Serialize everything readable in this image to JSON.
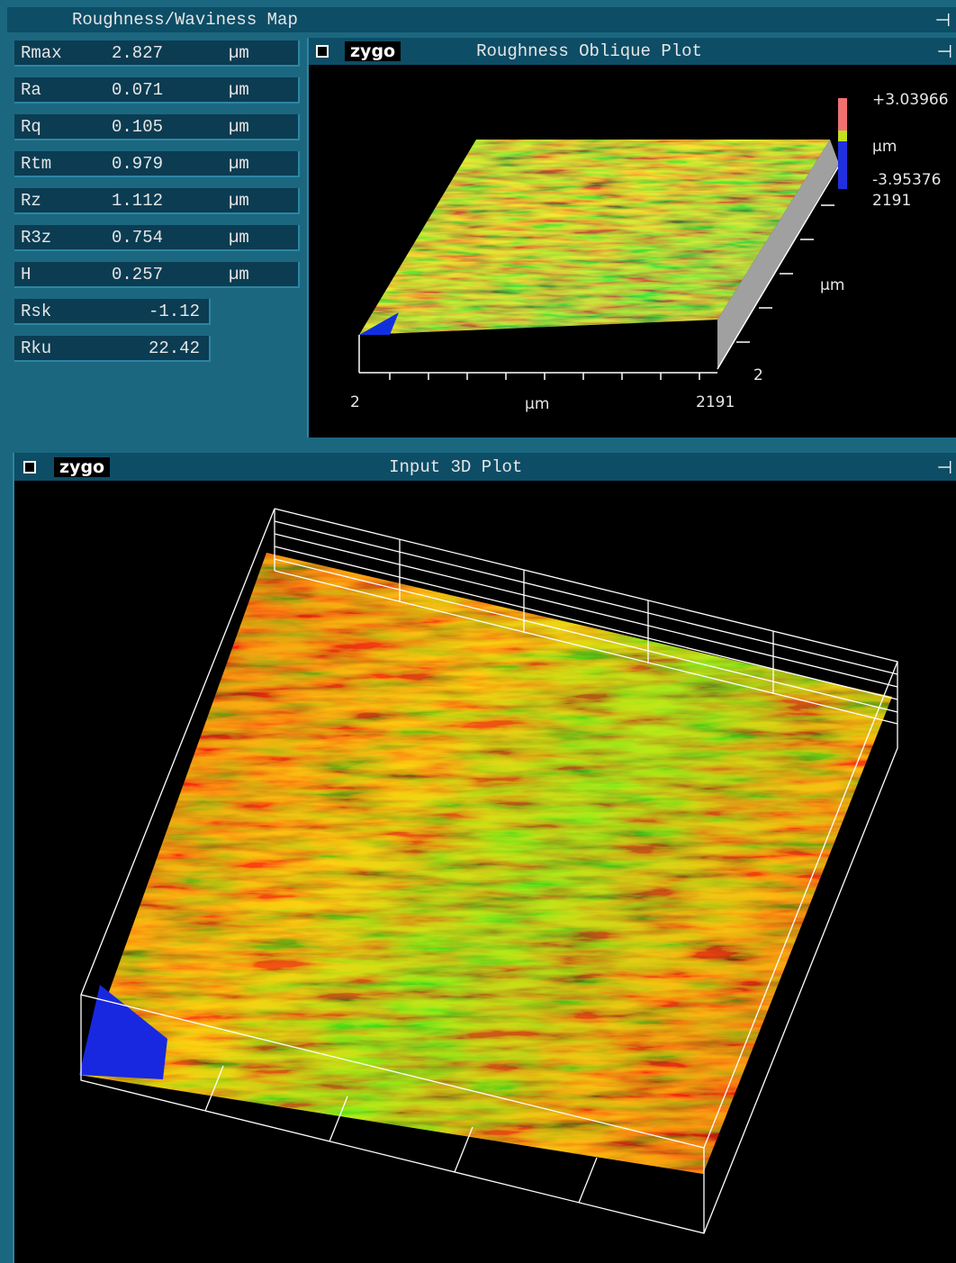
{
  "window": {
    "title": "Roughness/Waviness Map"
  },
  "parameters": [
    {
      "name": "Rmax",
      "value": 2.827,
      "unit": "µm"
    },
    {
      "name": "Ra",
      "value": 0.071,
      "unit": "µm"
    },
    {
      "name": "Rq",
      "value": 0.105,
      "unit": "µm"
    },
    {
      "name": "Rtm",
      "value": 0.979,
      "unit": "µm"
    },
    {
      "name": "Rz",
      "value": 1.112,
      "unit": "µm"
    },
    {
      "name": "R3z",
      "value": 0.754,
      "unit": "µm"
    },
    {
      "name": "H",
      "value": 0.257,
      "unit": "µm"
    },
    {
      "name": "Rsk",
      "value": -1.12
    },
    {
      "name": "Rku",
      "value": 22.42
    }
  ],
  "oblique_plot": {
    "logo": "zygo",
    "title": "Roughness Oblique Plot",
    "colorbar": {
      "max": "+3.03966",
      "unit": "µm",
      "min": "-3.95376",
      "size": 2191
    },
    "x_axis": {
      "start": 2,
      "label": "µm",
      "end": 2191
    },
    "y_axis": {
      "label": "µm",
      "start": 2
    }
  },
  "input_plot": {
    "logo": "zygo",
    "title": "Input 3D Plot"
  }
}
